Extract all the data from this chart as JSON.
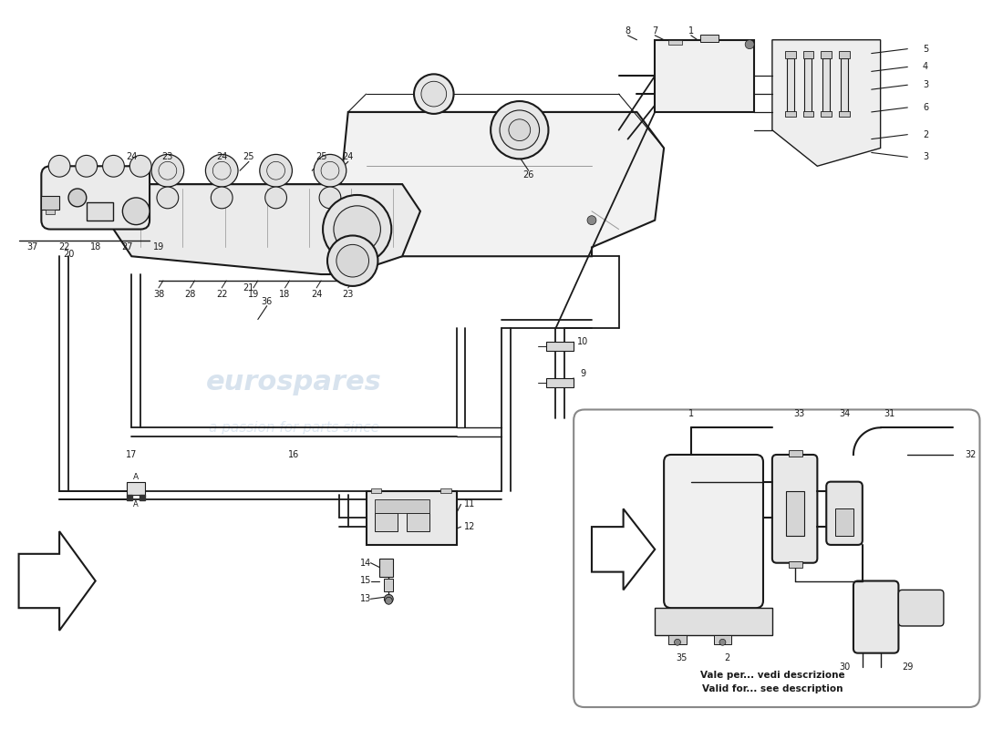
{
  "bg_color": "#ffffff",
  "lc": "#1a1a1a",
  "wm1": "eurospares",
  "wm2": "a passion for parts since",
  "wm_color": "#c8d8e8",
  "subtitle1": "Vale per... vedi descrizione",
  "subtitle2": "Valid for... see description",
  "fig_w": 11.0,
  "fig_h": 8.0
}
